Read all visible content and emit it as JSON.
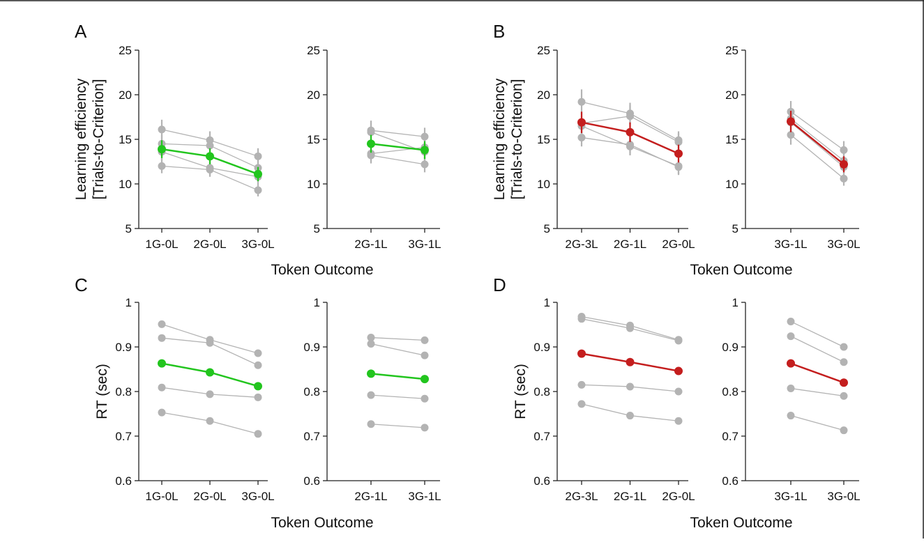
{
  "panels": [
    {
      "letter": "A",
      "ylabel": [
        "Learning efficiency",
        "[Trials-to-Criterion]"
      ],
      "xlabel": "Token Outcome"
    },
    {
      "letter": "B",
      "ylabel": [
        "Learning efficiency",
        "[Trials-to-Criterion]"
      ],
      "xlabel": "Token Outcome"
    },
    {
      "letter": "C",
      "ylabel": [
        "RT (sec)"
      ],
      "xlabel": "Token Outcome"
    },
    {
      "letter": "D",
      "ylabel": [
        "RT (sec)"
      ],
      "xlabel": "Token Outcome"
    }
  ],
  "colors": {
    "gain": "#22c51e",
    "loss": "#c41e1e",
    "individual": "#b3b3b3",
    "axis": "#222222"
  },
  "chart_data": [
    {
      "panel": "A",
      "type": "line",
      "categories": [
        "1G-0L",
        "2G-0L",
        "3G-0L"
      ],
      "ylim": [
        5,
        25
      ],
      "yticks": [
        5,
        10,
        15,
        20,
        25
      ],
      "mean": {
        "values": [
          13.9,
          13.1,
          11.1
        ],
        "color": "gain",
        "err": [
          1.0,
          0.9,
          0.8
        ]
      },
      "individuals": [
        {
          "values": [
            16.1,
            14.9,
            13.1
          ],
          "err": [
            1.1,
            1.0,
            0.9
          ]
        },
        {
          "values": [
            14.5,
            14.3,
            11.8
          ],
          "err": [
            1.0,
            1.0,
            0.8
          ]
        },
        {
          "values": [
            13.6,
            11.8,
            10.8
          ],
          "err": [
            0.9,
            0.8,
            0.8
          ]
        },
        {
          "values": [
            12.0,
            11.6,
            9.3
          ],
          "err": [
            0.8,
            0.8,
            0.7
          ]
        }
      ]
    },
    {
      "panel": "A",
      "type": "line",
      "categories": [
        "2G-1L",
        "3G-1L"
      ],
      "ylim": [
        5,
        25
      ],
      "yticks": [
        5,
        10,
        15,
        20,
        25
      ],
      "mean": {
        "values": [
          14.5,
          13.8
        ],
        "color": "gain",
        "err": [
          1.0,
          1.0
        ]
      },
      "individuals": [
        {
          "values": [
            16.0,
            15.3
          ],
          "err": [
            1.1,
            1.0
          ]
        },
        {
          "values": [
            15.8,
            13.6
          ],
          "err": [
            1.1,
            0.9
          ]
        },
        {
          "values": [
            13.4,
            14.1
          ],
          "err": [
            0.9,
            0.9
          ]
        },
        {
          "values": [
            13.2,
            12.2
          ],
          "err": [
            0.9,
            0.9
          ]
        }
      ]
    },
    {
      "panel": "B",
      "type": "line",
      "categories": [
        "2G-3L",
        "2G-1L",
        "2G-0L"
      ],
      "ylim": [
        5,
        25
      ],
      "yticks": [
        5,
        10,
        15,
        20,
        25
      ],
      "mean": {
        "values": [
          16.9,
          15.8,
          13.4
        ],
        "color": "loss",
        "err": [
          1.2,
          1.1,
          1.0
        ]
      },
      "individuals": [
        {
          "values": [
            19.2,
            17.9,
            14.9
          ],
          "err": [
            1.4,
            1.2,
            1.0
          ]
        },
        {
          "values": [
            16.8,
            17.6,
            14.7
          ],
          "err": [
            1.2,
            1.2,
            1.0
          ]
        },
        {
          "values": [
            16.5,
            14.2,
            12.0
          ],
          "err": [
            1.1,
            1.0,
            0.9
          ]
        },
        {
          "values": [
            15.2,
            14.4,
            11.9
          ],
          "err": [
            1.0,
            1.0,
            0.9
          ]
        }
      ]
    },
    {
      "panel": "B",
      "type": "line",
      "categories": [
        "3G-1L",
        "3G-0L"
      ],
      "ylim": [
        5,
        25
      ],
      "yticks": [
        5,
        10,
        15,
        20,
        25
      ],
      "mean": {
        "values": [
          17.0,
          12.2
        ],
        "color": "loss",
        "err": [
          1.2,
          0.9
        ]
      },
      "individuals": [
        {
          "values": [
            18.1,
            13.8
          ],
          "err": [
            1.2,
            1.0
          ]
        },
        {
          "values": [
            17.3,
            12.6
          ],
          "err": [
            1.2,
            0.9
          ]
        },
        {
          "values": [
            16.9,
            11.9
          ],
          "err": [
            1.2,
            0.9
          ]
        },
        {
          "values": [
            15.5,
            10.6
          ],
          "err": [
            1.1,
            0.8
          ]
        }
      ]
    },
    {
      "panel": "C",
      "type": "line",
      "categories": [
        "1G-0L",
        "2G-0L",
        "3G-0L"
      ],
      "ylim": [
        0.6,
        1.0
      ],
      "yticks": [
        0.6,
        0.7,
        0.8,
        0.9,
        1.0
      ],
      "ytick_labels": [
        "0.6",
        "0.7",
        "0.8",
        "0.9",
        "1"
      ],
      "mean": {
        "values": [
          0.863,
          0.843,
          0.812
        ],
        "color": "gain"
      },
      "individuals": [
        {
          "values": [
            0.951,
            0.916,
            0.886
          ]
        },
        {
          "values": [
            0.92,
            0.909,
            0.859
          ]
        },
        {
          "values": [
            0.809,
            0.794,
            0.787
          ]
        },
        {
          "values": [
            0.753,
            0.734,
            0.705
          ]
        }
      ]
    },
    {
      "panel": "C",
      "type": "line",
      "categories": [
        "2G-1L",
        "3G-1L"
      ],
      "ylim": [
        0.6,
        1.0
      ],
      "yticks": [
        0.6,
        0.7,
        0.8,
        0.9,
        1.0
      ],
      "ytick_labels": [
        "0.6",
        "0.7",
        "0.8",
        "0.9",
        "1"
      ],
      "mean": {
        "values": [
          0.84,
          0.828
        ],
        "color": "gain"
      },
      "individuals": [
        {
          "values": [
            0.921,
            0.915
          ]
        },
        {
          "values": [
            0.907,
            0.881
          ]
        },
        {
          "values": [
            0.792,
            0.784
          ]
        },
        {
          "values": [
            0.727,
            0.719
          ]
        }
      ]
    },
    {
      "panel": "D",
      "type": "line",
      "categories": [
        "2G-3L",
        "2G-1L",
        "2G-0L"
      ],
      "ylim": [
        0.6,
        1.0
      ],
      "yticks": [
        0.6,
        0.7,
        0.8,
        0.9,
        1.0
      ],
      "ytick_labels": [
        "0.6",
        "0.7",
        "0.8",
        "0.9",
        "1"
      ],
      "mean": {
        "values": [
          0.885,
          0.866,
          0.846
        ],
        "color": "loss"
      },
      "individuals": [
        {
          "values": [
            0.968,
            0.948,
            0.916
          ]
        },
        {
          "values": [
            0.963,
            0.942,
            0.914
          ]
        },
        {
          "values": [
            0.815,
            0.811,
            0.8
          ]
        },
        {
          "values": [
            0.772,
            0.746,
            0.734
          ]
        }
      ]
    },
    {
      "panel": "D",
      "type": "line",
      "categories": [
        "3G-1L",
        "3G-0L"
      ],
      "ylim": [
        0.6,
        1.0
      ],
      "yticks": [
        0.6,
        0.7,
        0.8,
        0.9,
        1.0
      ],
      "ytick_labels": [
        "0.6",
        "0.7",
        "0.8",
        "0.9",
        "1"
      ],
      "mean": {
        "values": [
          0.863,
          0.82
        ],
        "color": "loss"
      },
      "individuals": [
        {
          "values": [
            0.957,
            0.9
          ]
        },
        {
          "values": [
            0.924,
            0.866
          ]
        },
        {
          "values": [
            0.807,
            0.79
          ]
        },
        {
          "values": [
            0.746,
            0.713
          ]
        }
      ]
    }
  ]
}
